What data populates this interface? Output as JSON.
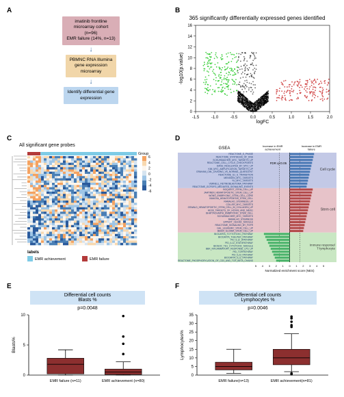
{
  "panelA": {
    "box1_line1": "imatinib frontline",
    "box1_line2": "microarray cohort",
    "box1_line3": "(n=96)",
    "box1_line4": "EMR failure (14%, n=13)",
    "box1_color": "#d9aeb6",
    "box2_line1": "PBMNC RNA Illumina",
    "box2_line2": "gene expression",
    "box2_line3": "microarray",
    "box2_color": "#f1d6a9",
    "box3_line1": "Identify differential gene",
    "box3_line2": "expression",
    "box3_color": "#bcd6ef",
    "arrow_color": "#3a6ea5"
  },
  "panelB": {
    "title": "365 significantly differentially expressed genes identified",
    "xlabel": "logFC",
    "ylabel": "-log10(p.value)",
    "xlim": [
      -1.5,
      2.0
    ],
    "ylim": [
      0,
      16
    ],
    "xticks": [
      -1.5,
      -1.0,
      -0.5,
      0.0,
      0.5,
      1.0,
      1.5,
      2.0
    ],
    "yticks": [
      0,
      2,
      4,
      6,
      8,
      10,
      12,
      14,
      16
    ],
    "sig_up_color": "#cc3333",
    "sig_down_color": "#33cc33",
    "ns_color": "#000000"
  },
  "panelC": {
    "title": "All significant gene probes",
    "legend_achieve_label": "EMR achievement",
    "legend_failure_label": "EMR failure",
    "legend_achieve_color": "#7ecbe6",
    "legend_failure_color": "#b33a3a",
    "group_label": "Group",
    "scale_values": [
      "6",
      "4",
      "2",
      "0",
      "-2",
      "-4",
      "-6"
    ],
    "heat_colors": [
      "#f4a261",
      "#f8d9b0",
      "#fdf6ee",
      "#d6e4f0",
      "#9ec5e6",
      "#4a7fb5",
      "#2a5a9c"
    ],
    "labels_label": "labels"
  },
  "panelD": {
    "gsea_label": "GSEA",
    "left_header": "Increase in EMR achievement",
    "right_header": "Increase in EMR failure",
    "fdr_label": "FDR q<0.05",
    "group1_color": "#c3c9e6",
    "group2_color": "#e7c3c9",
    "group3_color": "#c9e7c3",
    "bar1_color": "#4a79b5",
    "bar2_color": "#b34a4a",
    "bar3_color": "#4ab36b",
    "side_labels": [
      "Cell cycle",
      "Stem cell",
      "Immune response/T-lymphocyte"
    ],
    "xaxis_label": "Normalized enrichment score (NES)",
    "xticks_left": [
      "0",
      "1",
      "2",
      "3",
      "4",
      "5"
    ],
    "xticks_right": [
      "0",
      "1",
      "2",
      "3",
      "4",
      "5"
    ],
    "cell_cycle_pathways": [
      "REACTOME_S_PHASE",
      "REACTOME_SYNTHESIS_OF_DNA",
      "SCHUHMACHER_MYC_TARGETS_UP",
      "REACTOME_CELL_CYCLE_CHECKPOINTS",
      "DANG_REGULATED_BY_MYC_UP",
      "KIM_MYC_AMPLIFICATION_TARGETS_UP",
      "GRAHAM_CML_DIVIDING_VS_NORMAL_QUIESCENT",
      "REACTOME_G1_S_TRANSITION",
      "MENSSEN_MYC_TARGETS",
      "YU_MYC_TARGETS",
      "VERNELL_RETINOBLASTOMA_PATHWAY",
      "REACTOME_GCFS/FG_MEDIATED_SIGNALING_EVENTS"
    ],
    "cell_cycle_values": [
      3.6,
      3.5,
      3.4,
      3.3,
      3.2,
      3.1,
      3.0,
      2.9,
      2.8,
      2.7,
      2.6,
      2.5
    ],
    "stem_cell_pathways": [
      "BOQUEST_STEM_CELL_UP",
      "JAATINEN_HEMATOPOIETIC_STEM_CELL_UP",
      "WONG_EMBRYONIC_STEM_CELL_CORE",
      "IVANOVA_HEMATOPOIESIS_STEM_CELL",
      "RAMALHO_STEMNESS_UP",
      "COLLER_MYC_TARGETS",
      "OSWALD_HEMATOPOIETIC_STEM_CELL_IN_COLLAGEN_UP",
      "HESS_TARGETS_OF_HOXA9_AND_MEIS1",
      "BHATTACHARYA_EMBRYONIC_STEM_CELL",
      "SCHUHMACHER_MYC_TARGETS",
      "RAMALHO_STEMNESS",
      "EPPERT_CE/HSC_MODULE",
      "REACTOME_SIGNALING_BY_FGFR",
      "GAL_LEUKEMIC_STEM_CELL_UP",
      "BEIER_GLIOMA_STEM_CELL_UP"
    ],
    "stem_cell_values": [
      3.4,
      3.3,
      3.2,
      3.1,
      3.0,
      2.9,
      2.8,
      2.7,
      2.6,
      2.5,
      2.4,
      2.3,
      2.2,
      2.1,
      2.0
    ],
    "immune_pathways": [
      "BIOCARTA_TCYTOTOXIC_PATHWAY",
      "BIOCARTA_THELPER_PATHWAY",
      "PID_IL12_2PATHWAY",
      "PID_IL12_STAT4PATHWAY",
      "BIOSOC_TH1_CYTOTOXIC_MODULE",
      "BBK_INFLAMMATORY_RESPONSE_LPS_UP",
      "PID_TCRPATHWAY",
      "PID_IL23_PATHWAY",
      "BIOCARTA_IL12_PATHWAY",
      "REACTOME_PHOSPHORYLATION_OF_CD3_AND_TCR_BETA_CHAINS"
    ],
    "immune_values": [
      -3.8,
      -3.6,
      -3.4,
      -3.2,
      -3.0,
      -2.8,
      -2.6,
      -2.4,
      -2.2,
      -2.0
    ]
  },
  "panelE": {
    "title_line1": "Differential cell counts",
    "title_line2": "Blasts %",
    "title_bg": "#cfe3f5",
    "pvalue": "p=0.0048",
    "ylabel": "Blasts%",
    "ylim": [
      0,
      10
    ],
    "yticks": [
      0,
      5,
      10
    ],
    "cat1_label": "EMR failure (n=11)",
    "cat2_label": "EMR achievement (n=80)",
    "box_color": "#8c2f2f",
    "box1": {
      "q1": 0.2,
      "median": 1.8,
      "q3": 2.8,
      "wlo": 0,
      "whi": 4.2
    },
    "box2": {
      "q1": 0.1,
      "median": 0.5,
      "q3": 1.0,
      "wlo": 0,
      "whi": 2.2,
      "outliers": [
        3.5,
        5.2,
        6.4,
        9.8
      ]
    }
  },
  "panelF": {
    "title_line1": "Differential cell counts",
    "title_line2": "Lymphocytes %",
    "title_bg": "#cfe3f5",
    "pvalue": "p=0.0046",
    "ylabel": "Lymphocytes%",
    "ylim": [
      0,
      35
    ],
    "yticks": [
      0,
      5,
      10,
      15,
      20,
      25,
      30,
      35
    ],
    "cat1_label": "EMR failure(n=13)",
    "cat2_label": "EMR achievement(n=81)",
    "box_color": "#8c2f2f",
    "box1": {
      "q1": 3,
      "median": 5,
      "q3": 7.5,
      "wlo": 1,
      "whi": 15
    },
    "box2": {
      "q1": 6,
      "median": 10,
      "q3": 15,
      "wlo": 2,
      "whi": 24,
      "outliers": [
        28,
        29,
        31,
        33,
        34,
        1,
        0.5
      ]
    }
  }
}
